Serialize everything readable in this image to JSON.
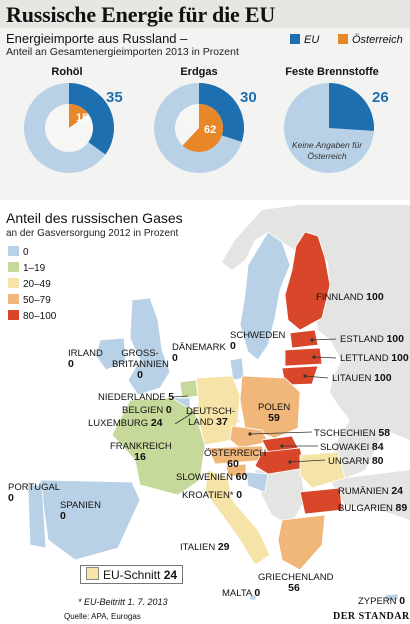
{
  "header": {
    "title": "Russische Energie für die EU",
    "subtitle": "Energieimporte aus Russland –",
    "subtitle2": "Anteil an Gesamtenergieimporten 2013 in Prozent"
  },
  "legend_top": [
    {
      "label": "EU",
      "color": "#1e6fb0"
    },
    {
      "label": "Österreich",
      "color": "#e8862a"
    }
  ],
  "chart_data": [
    {
      "type": "pie",
      "title": "Rohöl",
      "series": [
        {
          "name": "EU",
          "values": [
            35
          ]
        },
        {
          "name": "Österreich",
          "values": [
            15
          ]
        }
      ],
      "labels": {
        "eu": "35",
        "at": "15"
      }
    },
    {
      "type": "pie",
      "title": "Erdgas",
      "series": [
        {
          "name": "EU",
          "values": [
            30
          ]
        },
        {
          "name": "Österreich",
          "values": [
            62
          ]
        }
      ],
      "labels": {
        "eu": "30",
        "at": "62"
      }
    },
    {
      "type": "pie",
      "title": "Feste Brennstoffe",
      "series": [
        {
          "name": "EU",
          "values": [
            26
          ]
        }
      ],
      "labels": {
        "eu": "26"
      },
      "note": "Keine Angaben für Österreich"
    },
    {
      "type": "heatmap",
      "title": "Anteil des russischen Gases",
      "subtitle": "an der Gasversorgung 2012 in Prozent",
      "legend": [
        {
          "label": "0",
          "color": "#b9d1e6"
        },
        {
          "label": "1–19",
          "color": "#c6d99a"
        },
        {
          "label": "20–49",
          "color": "#f6e3a8"
        },
        {
          "label": "50–79",
          "color": "#f0b67a"
        },
        {
          "label": "80–100",
          "color": "#d9472b"
        }
      ],
      "countries": [
        {
          "name": "FINNLAND",
          "value": "100"
        },
        {
          "name": "ESTLAND",
          "value": "100"
        },
        {
          "name": "LETTLAND",
          "value": "100"
        },
        {
          "name": "LITAUEN",
          "value": "100"
        },
        {
          "name": "SCHWEDEN",
          "value": "0"
        },
        {
          "name": "DÄNEMARK",
          "value": "0"
        },
        {
          "name": "IRLAND",
          "value": "0"
        },
        {
          "name": "GROSS-BRITANNIEN",
          "value": "0"
        },
        {
          "name": "NIEDERLANDE",
          "value": "5"
        },
        {
          "name": "BELGIEN",
          "value": "0"
        },
        {
          "name": "LUXEMBURG",
          "value": "24"
        },
        {
          "name": "DEUTSCH-LAND",
          "value": "37"
        },
        {
          "name": "POLEN",
          "value": "59"
        },
        {
          "name": "TSCHECHIEN",
          "value": "58"
        },
        {
          "name": "SLOWAKEI",
          "value": "84"
        },
        {
          "name": "UNGARN",
          "value": "80"
        },
        {
          "name": "ÖSTERREICH",
          "value": "60"
        },
        {
          "name": "FRANKREICH",
          "value": "16"
        },
        {
          "name": "SLOWENIEN",
          "value": "60"
        },
        {
          "name": "KROATIEN*",
          "value": "0"
        },
        {
          "name": "PORTUGAL",
          "value": "0"
        },
        {
          "name": "SPANIEN",
          "value": "0"
        },
        {
          "name": "ITALIEN",
          "value": "29"
        },
        {
          "name": "RUMÄNIEN",
          "value": "24"
        },
        {
          "name": "BULGARIEN",
          "value": "89"
        },
        {
          "name": "GRIECHENLAND",
          "value": "56"
        },
        {
          "name": "MALTA",
          "value": "0"
        },
        {
          "name": "ZYPERN",
          "value": "0"
        }
      ],
      "eu_average": {
        "label": "EU-Schnitt",
        "value": "24"
      }
    }
  ],
  "footer": {
    "footnote": "* EU-Beitritt 1. 7. 2013",
    "source": "Quelle: APA, Eurogas",
    "brand": "DER STANDARD"
  },
  "colors": {
    "eu": "#1e6fb0",
    "at": "#e8862a",
    "pie_bg": "#b9d1e6",
    "sea": "#ffffff",
    "non_eu": "#e4e4e2"
  }
}
